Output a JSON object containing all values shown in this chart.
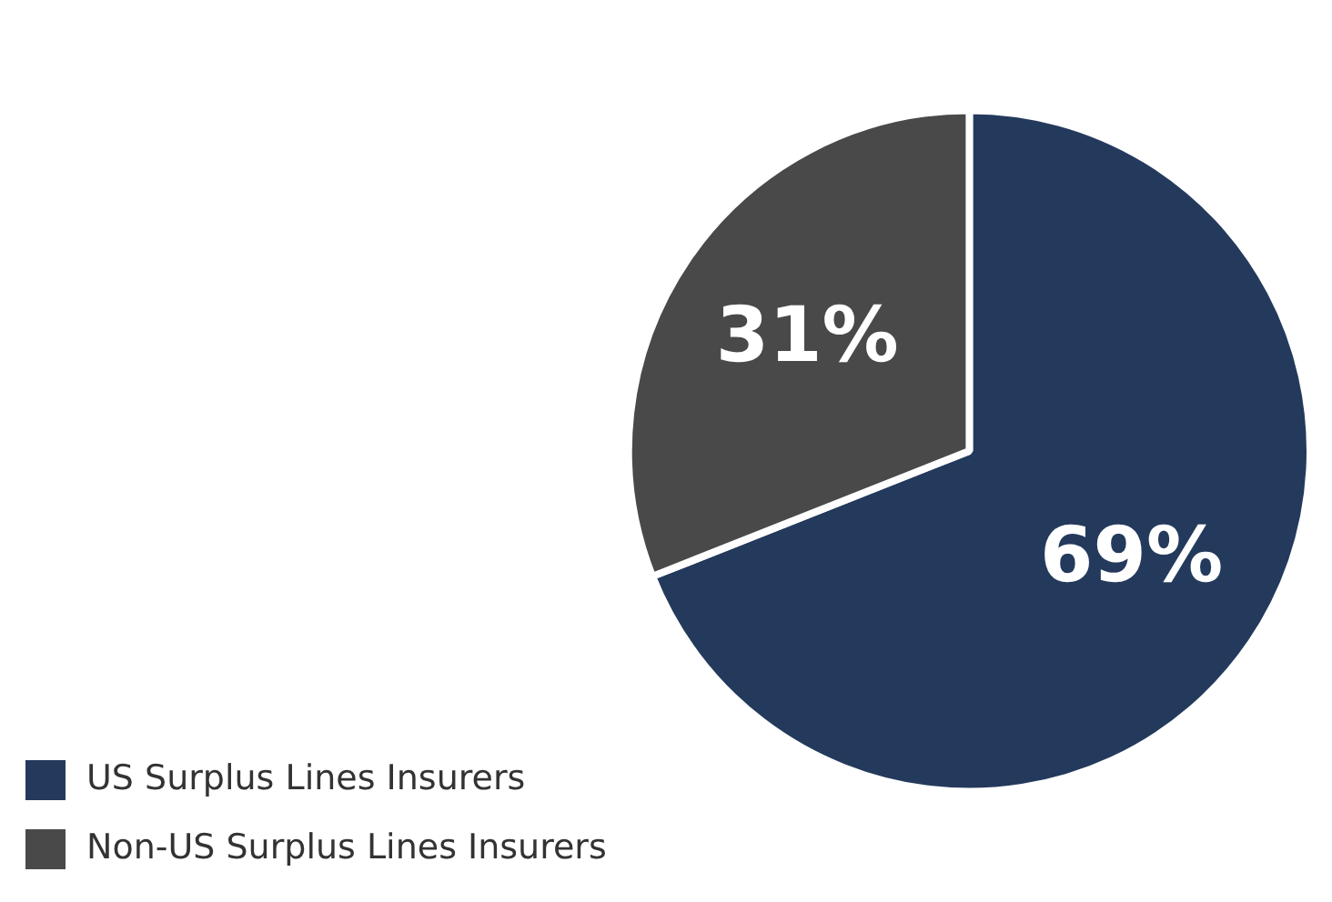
{
  "chart_data": {
    "type": "pie",
    "categories": [
      "US Surplus Lines Insurers",
      "Non-US Surplus Lines Insurers"
    ],
    "values": [
      69,
      31
    ],
    "colors": [
      "#243a5c",
      "#4a4949"
    ],
    "value_labels": [
      "69%",
      "31%"
    ],
    "legend": "bottom left"
  }
}
